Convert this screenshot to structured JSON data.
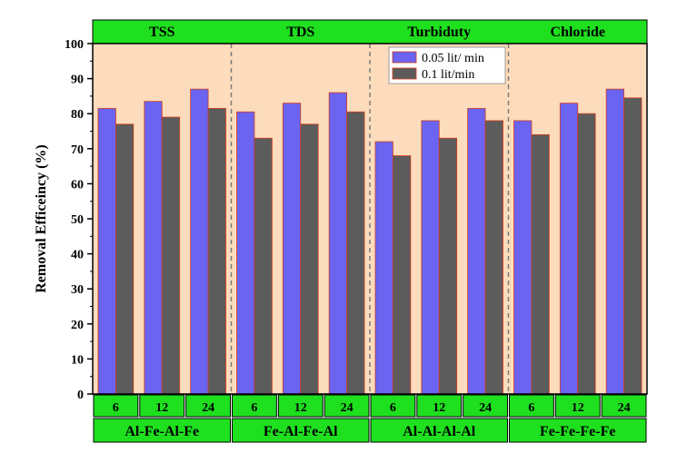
{
  "chart_data": {
    "type": "bar",
    "ylabel": "Removal Efficeincy (%)",
    "ylim": [
      0,
      100
    ],
    "yticks": [
      0,
      10,
      20,
      30,
      40,
      50,
      60,
      70,
      80,
      90,
      100
    ],
    "panels": [
      "TSS",
      "TDS",
      "Turbiduty",
      "Chloride"
    ],
    "groups": [
      "Al-Fe-Al-Fe",
      "Fe-Al-Fe-Al",
      "Al-Al-Al-Al",
      "Fe-Fe-Fe-Fe"
    ],
    "categories": [
      "6",
      "12",
      "24"
    ],
    "series": [
      {
        "name": "0.05 lit/ min",
        "color": "#6a64f0",
        "values": [
          [
            81.5,
            83.5,
            87
          ],
          [
            80.5,
            83,
            86
          ],
          [
            72,
            78,
            81.5
          ],
          [
            78,
            83,
            87
          ]
        ]
      },
      {
        "name": "0.1 lit/min",
        "color": "#5c5c5c",
        "values": [
          [
            77,
            79,
            81.5
          ],
          [
            73,
            77,
            80.5
          ],
          [
            68,
            73,
            78
          ],
          [
            74,
            80,
            84.5
          ]
        ]
      }
    ],
    "legend": "top-center",
    "colors": {
      "background": "#fcdcbc",
      "header": "#1ee01e",
      "bar_outline": "#d23a1c",
      "separator": "#7a7a7a"
    }
  }
}
